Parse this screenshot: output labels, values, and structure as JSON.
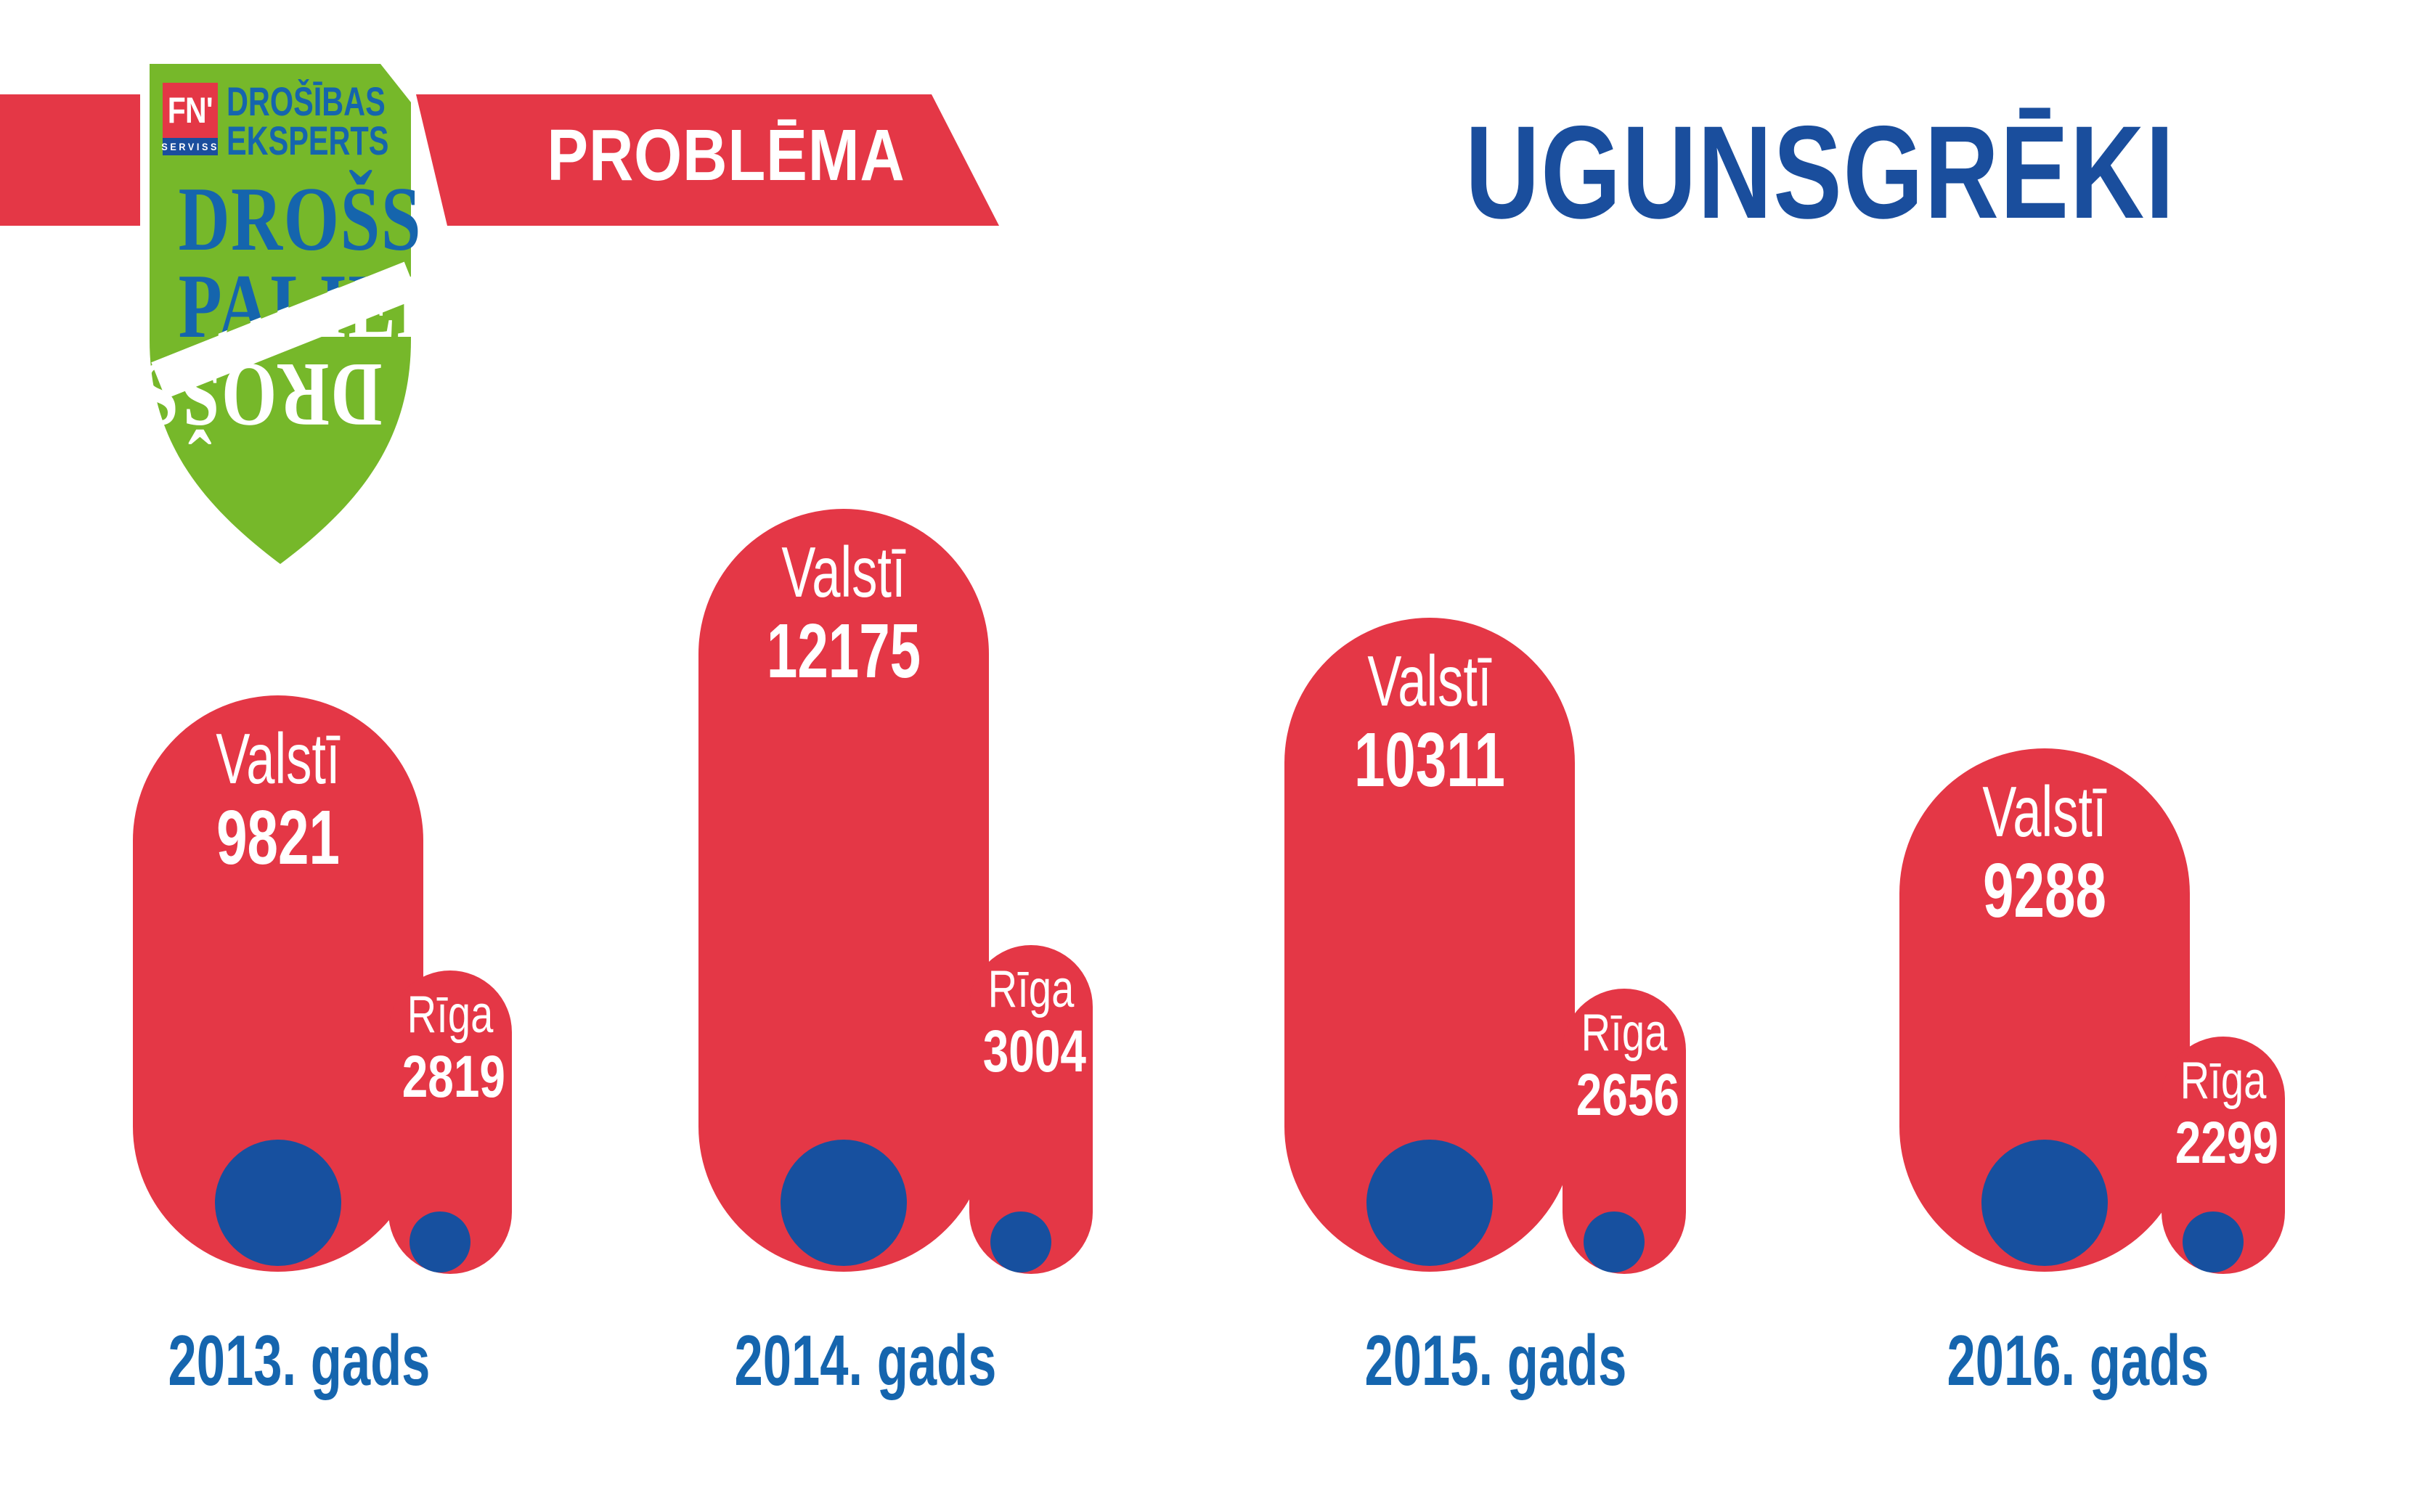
{
  "header": {
    "title": "UGUNSGRĒKI"
  },
  "ribbon": {
    "label": "PROBLĒMA"
  },
  "logo": {
    "fn": "FN'",
    "serviss": "SERVISS",
    "line1": "DROŠĪBAS",
    "line2": "EKSPERTS",
    "motto": [
      "DROŠS",
      "PALIEK",
      "DROŠS"
    ]
  },
  "colors": {
    "red": "#e43746",
    "green": "#76b82a",
    "navy": "#1a4e9d",
    "logo_blue": "#1565ad",
    "year_blue": "#1565ae",
    "dot_blue": "#17509f"
  },
  "chart_data": {
    "type": "bar",
    "title": "UGUNSGRĒKI",
    "subtitle": "PROBLĒMA",
    "categories": [
      "2013. gads",
      "2014. gads",
      "2015. gads",
      "2016. gads"
    ],
    "series": [
      {
        "name": "Valstī",
        "values": [
          9821,
          12175,
          10311,
          9288
        ]
      },
      {
        "name": "Rīga",
        "values": [
          2819,
          3004,
          2656,
          2299
        ]
      }
    ],
    "value_labels_shown": true,
    "legend_position": "labels inside shapes",
    "grid": false,
    "xlabel": "",
    "ylabel": ""
  }
}
